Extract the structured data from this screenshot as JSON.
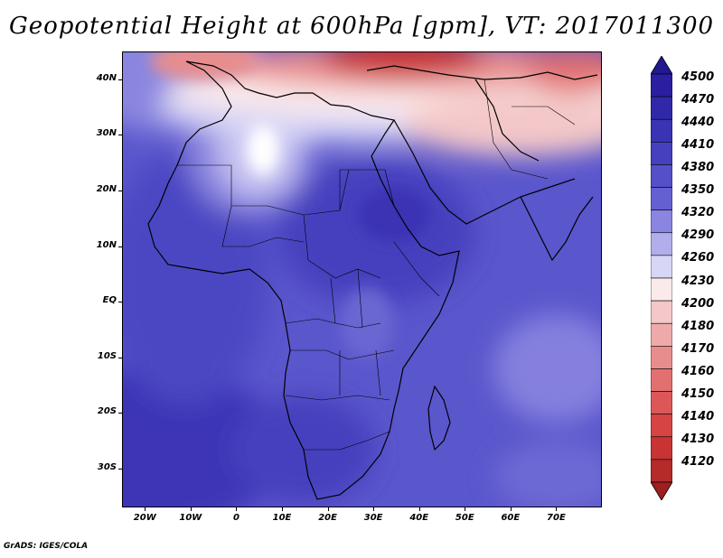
{
  "title": "Geopotential Height at 600hPa [gpm], VT: 2017011300",
  "credit": "GrADS: IGES/COLA",
  "map": {
    "lon_range": [
      -25,
      80
    ],
    "lat_range": [
      -37,
      45
    ],
    "y_ticks": [
      {
        "lat": 40,
        "label": "40N"
      },
      {
        "lat": 30,
        "label": "30N"
      },
      {
        "lat": 20,
        "label": "20N"
      },
      {
        "lat": 10,
        "label": "10N"
      },
      {
        "lat": 0,
        "label": "EQ"
      },
      {
        "lat": -10,
        "label": "10S"
      },
      {
        "lat": -20,
        "label": "20S"
      },
      {
        "lat": -30,
        "label": "30S"
      }
    ],
    "x_ticks": [
      {
        "lon": -20,
        "label": "20W"
      },
      {
        "lon": -10,
        "label": "10W"
      },
      {
        "lon": 0,
        "label": "0"
      },
      {
        "lon": 10,
        "label": "10E"
      },
      {
        "lon": 20,
        "label": "20E"
      },
      {
        "lon": 30,
        "label": "30E"
      },
      {
        "lon": 40,
        "label": "40E"
      },
      {
        "lon": 50,
        "label": "50E"
      },
      {
        "lon": 60,
        "label": "60E"
      },
      {
        "lon": 70,
        "label": "70E"
      }
    ]
  },
  "colorbar": {
    "levels": [
      {
        "label": "4500",
        "color": "#2a1fa0"
      },
      {
        "label": "4470",
        "color": "#3128a8"
      },
      {
        "label": "4440",
        "color": "#3a33b4"
      },
      {
        "label": "4410",
        "color": "#4640be"
      },
      {
        "label": "4380",
        "color": "#5550c8"
      },
      {
        "label": "4350",
        "color": "#6560d2"
      },
      {
        "label": "4320",
        "color": "#8a85e0"
      },
      {
        "label": "4290",
        "color": "#b2aeec"
      },
      {
        "label": "4260",
        "color": "#d8d6f6"
      },
      {
        "label": "4230",
        "color": "#fbeaea"
      },
      {
        "label": "4200",
        "color": "#f4c8c8"
      },
      {
        "label": "4180",
        "color": "#eeaaaa"
      },
      {
        "label": "4170",
        "color": "#e88d8d"
      },
      {
        "label": "4160",
        "color": "#e27070"
      },
      {
        "label": "4150",
        "color": "#dc5858"
      },
      {
        "label": "4140",
        "color": "#d64444"
      },
      {
        "label": "4130",
        "color": "#c83434"
      },
      {
        "label": "4120",
        "color": "#b52a2a"
      }
    ],
    "top_arrow_color": "#221890",
    "bottom_arrow_color": "#a01e1e"
  }
}
